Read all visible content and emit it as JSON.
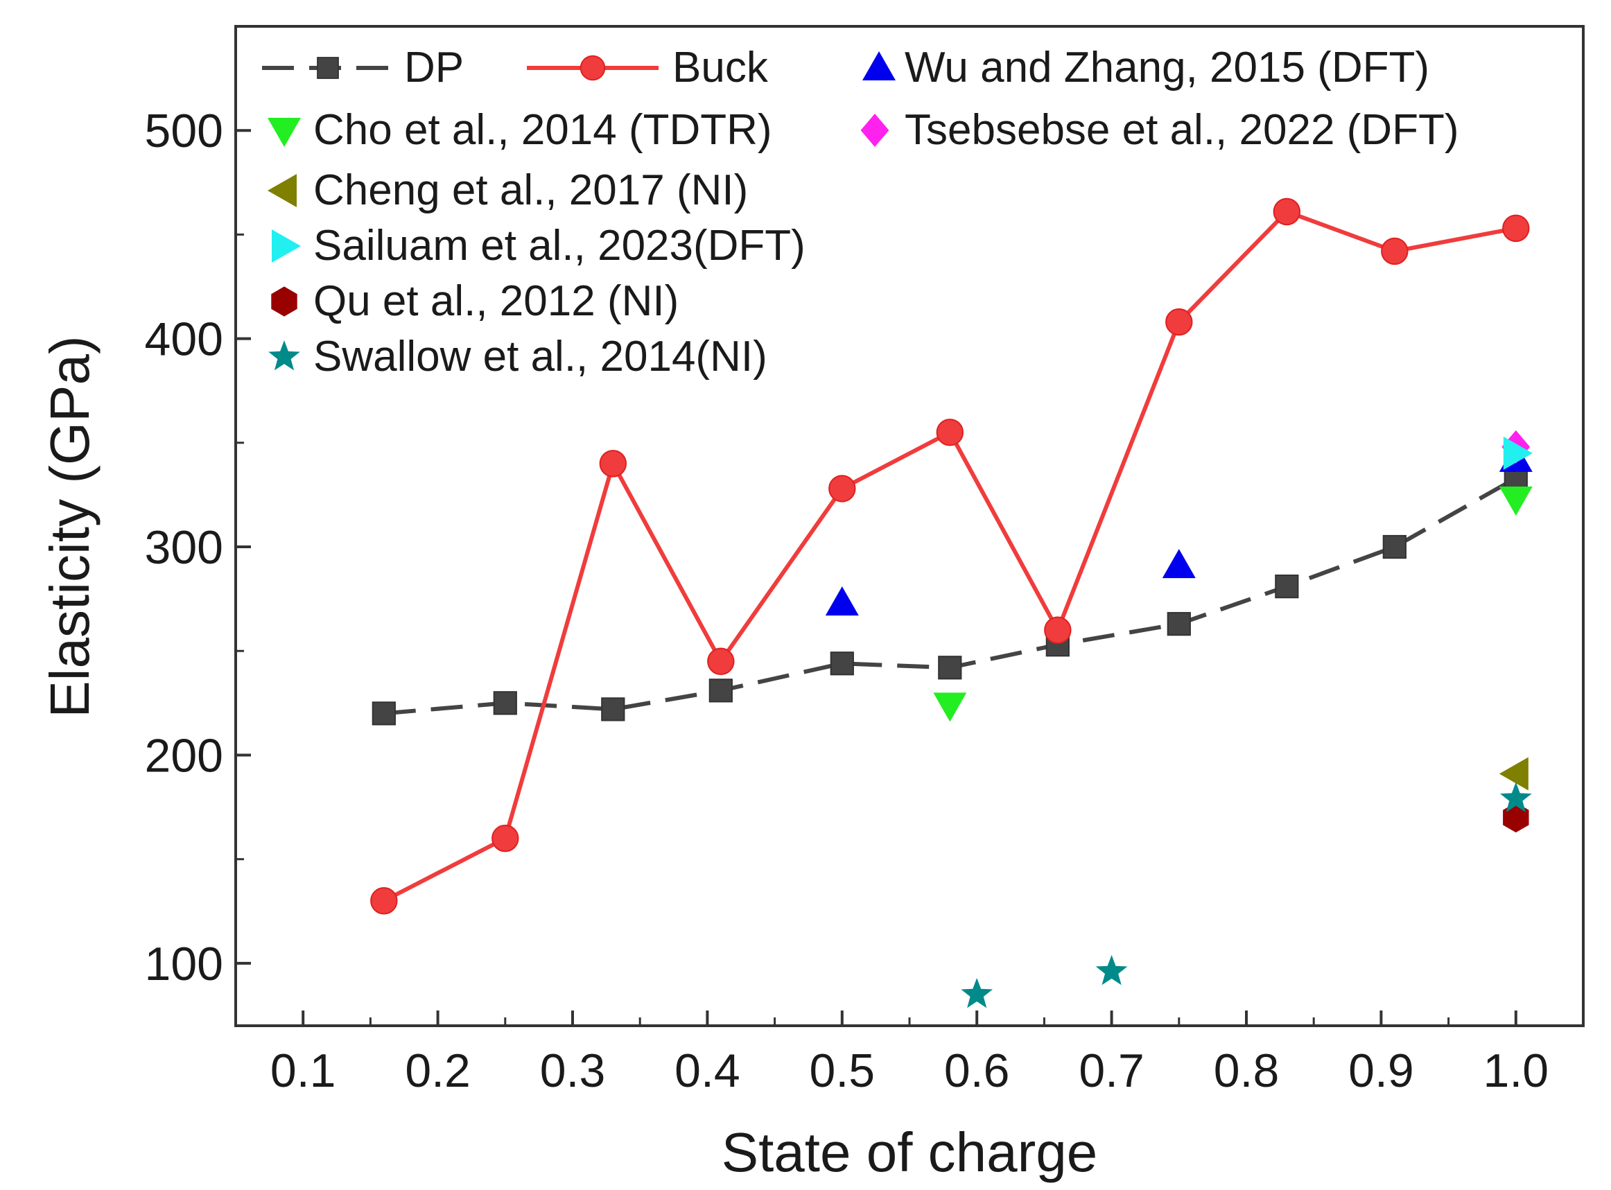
{
  "chart_data": {
    "type": "scatter",
    "xlabel": "State of charge",
    "ylabel": "Elasticity (GPa)",
    "xlim": [
      0.05,
      1.05
    ],
    "ylim": [
      70,
      550
    ],
    "xticks": [
      0.1,
      0.2,
      0.3,
      0.4,
      0.5,
      0.6,
      0.7,
      0.8,
      0.9,
      1.0
    ],
    "xtick_labels": [
      "0.1",
      "0.2",
      "0.3",
      "0.4",
      "0.5",
      "0.6",
      "0.7",
      "0.8",
      "0.9",
      "1.0"
    ],
    "yticks": [
      100,
      200,
      300,
      400,
      500
    ],
    "ytick_labels": [
      "100",
      "200",
      "300",
      "400",
      "500"
    ],
    "grid": false,
    "legend_position": "top-left",
    "series": [
      {
        "name": "DP",
        "kind": "line",
        "style": "dashed",
        "marker": "square",
        "color": "#444444",
        "x": [
          0.16,
          0.25,
          0.33,
          0.41,
          0.5,
          0.58,
          0.66,
          0.75,
          0.83,
          0.91,
          1.0
        ],
        "y": [
          220,
          225,
          222,
          231,
          244,
          242,
          253,
          263,
          281,
          300,
          333
        ]
      },
      {
        "name": "Buck",
        "kind": "line",
        "style": "solid",
        "marker": "circle",
        "color": "#f03c3c",
        "x": [
          0.16,
          0.25,
          0.33,
          0.41,
          0.5,
          0.58,
          0.66,
          0.75,
          0.83,
          0.91,
          1.0
        ],
        "y": [
          130,
          160,
          340,
          245,
          328,
          355,
          260,
          408,
          461,
          442,
          453
        ]
      },
      {
        "name": "Wu and Zhang, 2015 (DFT)",
        "kind": "scatter",
        "marker": "triangle-up",
        "color": "#0000ee",
        "x": [
          0.5,
          0.75,
          1.0
        ],
        "y": [
          273,
          291,
          342
        ]
      },
      {
        "name": "Cho et al., 2014 (TDTR)",
        "kind": "scatter",
        "marker": "triangle-down",
        "color": "#22ee22",
        "x": [
          0.58,
          1.0
        ],
        "y": [
          224,
          323
        ]
      },
      {
        "name": "Tsebsebse et al., 2022 (DFT)",
        "kind": "scatter",
        "marker": "diamond",
        "color": "#ff22ee",
        "x": [
          1.0
        ],
        "y": [
          348
        ]
      },
      {
        "name": "Cheng et al., 2017 (NI)",
        "kind": "scatter",
        "marker": "triangle-left",
        "color": "#7f7f00",
        "x": [
          1.0
        ],
        "y": [
          191
        ]
      },
      {
        "name": "Sailuam et al., 2023(DFT)",
        "kind": "scatter",
        "marker": "triangle-right",
        "color": "#22f0f0",
        "x": [
          1.0
        ],
        "y": [
          345
        ]
      },
      {
        "name": "Qu et al., 2012 (NI)",
        "kind": "scatter",
        "marker": "hexagon",
        "color": "#990000",
        "x": [
          1.0
        ],
        "y": [
          170
        ]
      },
      {
        "name": "Swallow et al., 2014(NI)",
        "kind": "scatter",
        "marker": "star",
        "color": "#008a8a",
        "x": [
          0.6,
          0.7,
          1.0
        ],
        "y": [
          85,
          96,
          179
        ]
      }
    ]
  }
}
